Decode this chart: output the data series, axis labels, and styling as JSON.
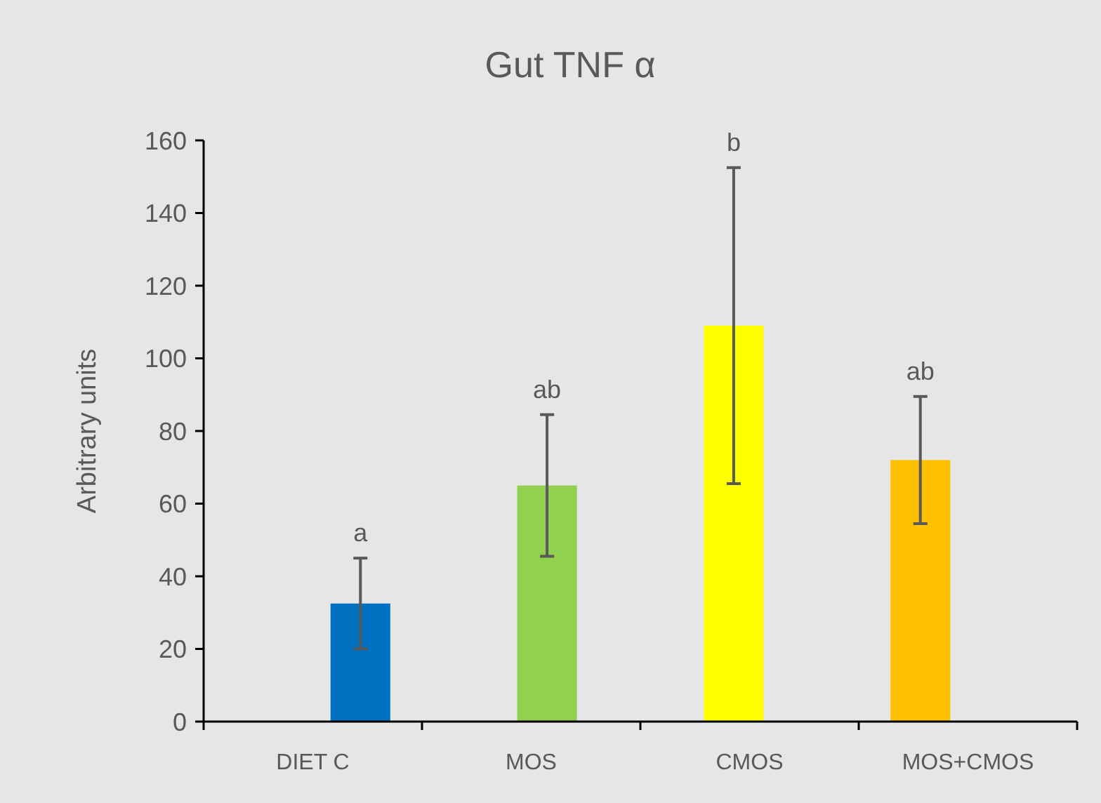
{
  "chart_data": {
    "type": "bar",
    "title": "Gut TNF α",
    "ylabel": "Arbitrary units",
    "categories": [
      "DIET C",
      "MOS",
      "CMOS",
      "MOS+CMOS"
    ],
    "values": [
      32.5,
      65,
      109,
      72
    ],
    "colors": [
      "#0070c0",
      "#92d050",
      "#ffff00",
      "#ffc000"
    ],
    "errors": [
      12.5,
      19.5,
      43.5,
      17.5
    ],
    "ylim": [
      0,
      160
    ],
    "yticks": [
      0,
      20,
      40,
      60,
      80,
      100,
      120,
      140,
      160
    ],
    "grid": false,
    "annotations": [
      "a",
      "ab",
      "b",
      "ab"
    ]
  }
}
